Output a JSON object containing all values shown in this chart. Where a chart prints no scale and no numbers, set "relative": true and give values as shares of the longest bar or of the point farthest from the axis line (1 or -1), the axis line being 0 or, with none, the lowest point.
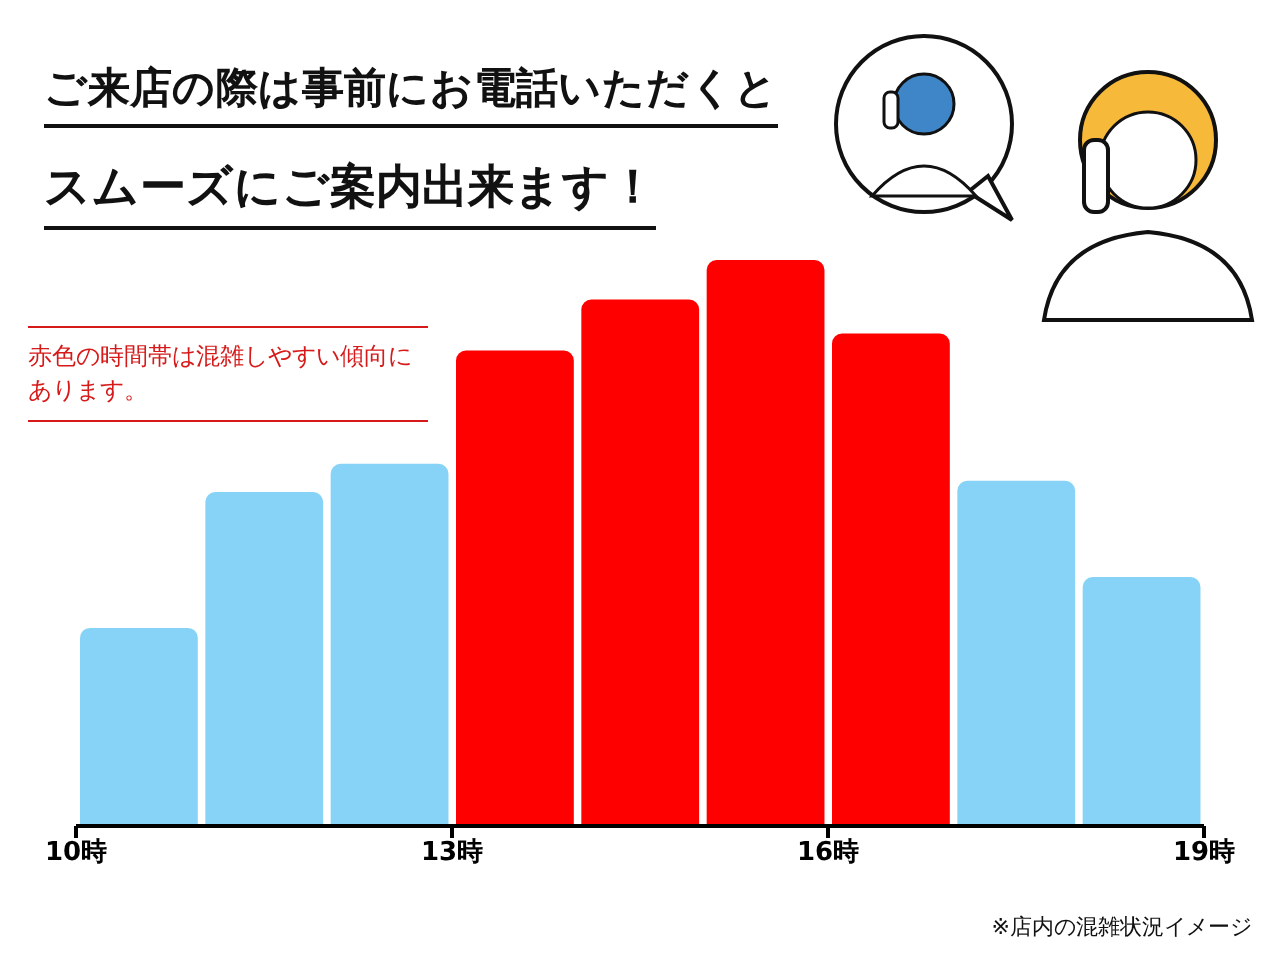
{
  "chart_data": {
    "type": "bar",
    "title": "ご来店の際は事前にお電話いただくと",
    "subtitle": "スムーズにご案内出来ます！",
    "relative": true,
    "x": [
      10.5,
      11.5,
      12.5,
      13.5,
      14.5,
      15.5,
      16.5,
      17.5,
      18.5
    ],
    "values": [
      0.35,
      0.59,
      0.64,
      0.84,
      0.93,
      1,
      0.87,
      0.61,
      0.44
    ],
    "colors": [
      "#87d3f8",
      "#87d3f8",
      "#87d3f8",
      "#ff0000",
      "#ff0000",
      "#ff0000",
      "#ff0000",
      "#87d3f8",
      "#87d3f8"
    ],
    "xlim": [
      10,
      19
    ],
    "xticks": [
      {
        "value": 10,
        "label": "10時"
      },
      {
        "value": 13,
        "label": "13時"
      },
      {
        "value": 16,
        "label": "16時"
      },
      {
        "value": 19,
        "label": "19時"
      }
    ],
    "annotations": [
      "赤色の時間帯は混雑しやすい傾向にあります。",
      "※店内の混雑状況イメージ"
    ]
  }
}
